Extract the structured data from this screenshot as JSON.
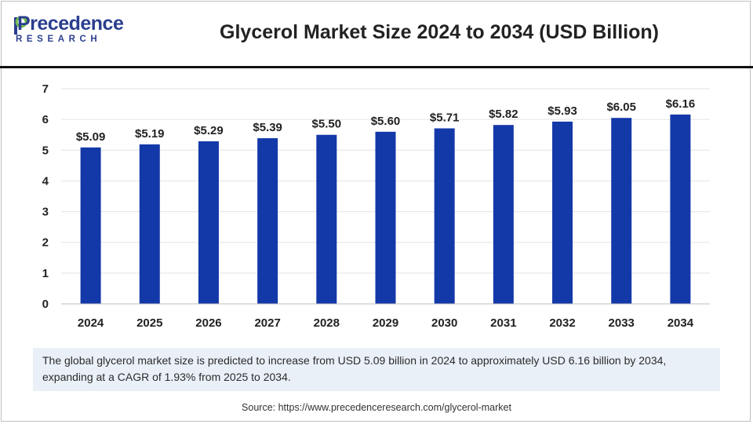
{
  "brand": {
    "logo_word": "Precedence",
    "logo_sub": "RESEARCH"
  },
  "chart_data": {
    "type": "bar",
    "title": "Glycerol Market Size 2024 to 2034 (USD Billion)",
    "xlabel": "",
    "ylabel": "",
    "categories": [
      "2024",
      "2025",
      "2026",
      "2027",
      "2028",
      "2029",
      "2030",
      "2031",
      "2032",
      "2033",
      "2034"
    ],
    "values": [
      5.09,
      5.19,
      5.29,
      5.39,
      5.5,
      5.6,
      5.71,
      5.82,
      5.93,
      6.05,
      6.16
    ],
    "data_labels": [
      "$5.09",
      "$5.19",
      "$5.29",
      "$5.39",
      "$5.50",
      "$5.60",
      "$5.71",
      "$5.82",
      "$5.93",
      "$6.05",
      "$6.16"
    ],
    "ylim": [
      0,
      7
    ],
    "yticks": [
      "0",
      "1",
      "2",
      "3",
      "4",
      "5",
      "6",
      "7"
    ],
    "grid": true,
    "bar_color": "#1338a8"
  },
  "summary": "The global glycerol market size is predicted to increase from USD 5.09 billion in 2024 to approximately USD 6.16 billion by 2034, expanding at a CAGR of 1.93% from 2025 to 2034.",
  "source": "Source: https://www.precedenceresearch.com/glycerol-market"
}
